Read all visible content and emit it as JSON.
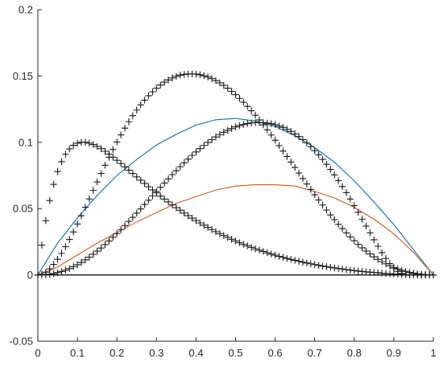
{
  "chart_data": {
    "type": "line",
    "xlim": [
      0,
      1
    ],
    "ylim": [
      -0.05,
      0.2
    ],
    "grid": false,
    "x_ticks": [
      "0",
      "0.1",
      "0.2",
      "0.3",
      "0.4",
      "0.5",
      "0.6",
      "0.7",
      "0.8",
      "0.9",
      "1"
    ],
    "y_ticks": [
      "-0.05",
      "0",
      "0.05",
      "0.1",
      "0.15",
      "0.2"
    ],
    "x_tick_values": [
      0,
      0.1,
      0.2,
      0.3,
      0.4,
      0.5,
      0.6,
      0.7,
      0.8,
      0.9,
      1
    ],
    "y_tick_values": [
      -0.05,
      0,
      0.05,
      0.1,
      0.15,
      0.2
    ],
    "colors": {
      "blue": "#0072BD",
      "orange": "#D95319",
      "marker": "#1a1a1a",
      "axis": "#262626"
    },
    "series": [
      {
        "style": "line",
        "color": "#0072BD",
        "x": [
          0,
          0.05,
          0.1,
          0.15,
          0.2,
          0.25,
          0.3,
          0.35,
          0.4,
          0.45,
          0.5,
          0.55,
          0.6,
          0.65,
          0.7,
          0.75,
          0.8,
          0.85,
          0.9,
          0.95,
          1
        ],
        "y": [
          0,
          0.024,
          0.043,
          0.06,
          0.075,
          0.087,
          0.098,
          0.106,
          0.113,
          0.117,
          0.118,
          0.116,
          0.112,
          0.105,
          0.096,
          0.085,
          0.071,
          0.055,
          0.038,
          0.019,
          0
        ]
      },
      {
        "style": "line",
        "color": "#D95319",
        "x": [
          0,
          0.05,
          0.1,
          0.15,
          0.2,
          0.25,
          0.3,
          0.35,
          0.4,
          0.45,
          0.5,
          0.55,
          0.6,
          0.65,
          0.7,
          0.75,
          0.8,
          0.85,
          0.9,
          0.95,
          1
        ],
        "y": [
          0,
          0.006,
          0.015,
          0.024,
          0.032,
          0.04,
          0.047,
          0.054,
          0.059,
          0.064,
          0.067,
          0.068,
          0.068,
          0.067,
          0.063,
          0.058,
          0.051,
          0.042,
          0.031,
          0.017,
          0
        ]
      },
      {
        "style": "markers",
        "marker": "+",
        "color": "#1a1a1a",
        "x": [
          0,
          0.01,
          0.02,
          0.03,
          0.04,
          0.05,
          0.06,
          0.07,
          0.08,
          0.09,
          0.1,
          0.11,
          0.12,
          0.13,
          0.14,
          0.15,
          0.16,
          0.17,
          0.18,
          0.19,
          0.2,
          0.21,
          0.22,
          0.23,
          0.24,
          0.25,
          0.26,
          0.27,
          0.28,
          0.29,
          0.3,
          0.31,
          0.32,
          0.33,
          0.34,
          0.35,
          0.36,
          0.37,
          0.38,
          0.39,
          0.4,
          0.41,
          0.42,
          0.43,
          0.44,
          0.45,
          0.46,
          0.47,
          0.48,
          0.49,
          0.5,
          0.51,
          0.52,
          0.53,
          0.54,
          0.55,
          0.56,
          0.57,
          0.58,
          0.59,
          0.6,
          0.61,
          0.62,
          0.63,
          0.64,
          0.65,
          0.66,
          0.67,
          0.68,
          0.69,
          0.7,
          0.71,
          0.72,
          0.73,
          0.74,
          0.75,
          0.76,
          0.77,
          0.78,
          0.79,
          0.8,
          0.81,
          0.82,
          0.83,
          0.84,
          0.85,
          0.86,
          0.87,
          0.88,
          0.89,
          0.9,
          0.91,
          0.92,
          0.93,
          0.94,
          0.95,
          0.96,
          0.97,
          0.98,
          0.99,
          1
        ],
        "y": [
          0,
          0.0224,
          0.0409,
          0.0561,
          0.0683,
          0.0779,
          0.0854,
          0.091,
          0.095,
          0.0977,
          0.0993,
          0.1,
          0.1,
          0.0994,
          0.0983,
          0.0969,
          0.0952,
          0.0932,
          0.0911,
          0.0888,
          0.0864,
          0.084,
          0.0815,
          0.079,
          0.0765,
          0.0739,
          0.0714,
          0.069,
          0.0665,
          0.0641,
          0.0618,
          0.0595,
          0.0572,
          0.055,
          0.0528,
          0.0507,
          0.0487,
          0.0467,
          0.0447,
          0.0428,
          0.041,
          0.0392,
          0.0375,
          0.0358,
          0.0342,
          0.0326,
          0.0311,
          0.0297,
          0.0283,
          0.0269,
          0.0256,
          0.0243,
          0.0231,
          0.0219,
          0.0208,
          0.0197,
          0.0187,
          0.0177,
          0.0167,
          0.0158,
          0.0149,
          0.014,
          0.0132,
          0.0124,
          0.0117,
          0.011,
          0.0103,
          0.0096,
          0.009,
          0.0084,
          0.0078,
          0.0072,
          0.0067,
          0.0062,
          0.0057,
          0.0053,
          0.0048,
          0.0044,
          0.004,
          0.0036,
          0.0033,
          0.0029,
          0.0026,
          0.0023,
          0.0021,
          0.0018,
          0.0016,
          0.0013,
          0.0011,
          0.0009,
          0.0007,
          0.0006,
          0.0004,
          0.0003,
          0.0002,
          0.0001,
          0.0001,
          0,
          0,
          0,
          0
        ]
      },
      {
        "style": "markers",
        "marker": "+",
        "color": "#1a1a1a",
        "x": [
          0,
          0.01,
          0.02,
          0.03,
          0.04,
          0.05,
          0.06,
          0.07,
          0.08,
          0.09,
          0.1,
          0.11,
          0.12,
          0.13,
          0.14,
          0.15,
          0.16,
          0.17,
          0.18,
          0.19,
          0.2,
          0.21,
          0.22,
          0.23,
          0.24,
          0.25,
          0.26,
          0.27,
          0.28,
          0.29,
          0.3,
          0.31,
          0.32,
          0.33,
          0.34,
          0.35,
          0.36,
          0.37,
          0.38,
          0.39,
          0.4,
          0.41,
          0.42,
          0.43,
          0.44,
          0.45,
          0.46,
          0.47,
          0.48,
          0.49,
          0.5,
          0.51,
          0.52,
          0.53,
          0.54,
          0.55,
          0.56,
          0.57,
          0.58,
          0.59,
          0.6,
          0.61,
          0.62,
          0.63,
          0.64,
          0.65,
          0.66,
          0.67,
          0.68,
          0.69,
          0.7,
          0.71,
          0.72,
          0.73,
          0.74,
          0.75,
          0.76,
          0.77,
          0.78,
          0.79,
          0.8,
          0.81,
          0.82,
          0.83,
          0.84,
          0.85,
          0.86,
          0.87,
          0.88,
          0.89,
          0.9,
          0.91,
          0.92,
          0.93,
          0.94,
          0.95,
          0.96,
          0.97,
          0.98,
          0.99,
          1
        ],
        "y": [
          0,
          0.0005,
          0.0021,
          0.0046,
          0.0079,
          0.0118,
          0.0163,
          0.0213,
          0.0267,
          0.0324,
          0.0384,
          0.0446,
          0.0509,
          0.0573,
          0.0637,
          0.0701,
          0.0765,
          0.0827,
          0.0887,
          0.0946,
          0.1002,
          0.1056,
          0.1107,
          0.1155,
          0.1201,
          0.1243,
          0.1282,
          0.1318,
          0.1351,
          0.1381,
          0.1408,
          0.1432,
          0.1453,
          0.147,
          0.1485,
          0.1497,
          0.1506,
          0.1512,
          0.1515,
          0.1516,
          0.1514,
          0.1509,
          0.1502,
          0.1492,
          0.148,
          0.1465,
          0.1448,
          0.1429,
          0.1408,
          0.1384,
          0.1359,
          0.1331,
          0.1302,
          0.1271,
          0.1238,
          0.1204,
          0.1168,
          0.1132,
          0.1094,
          0.1055,
          0.1015,
          0.0975,
          0.0934,
          0.0893,
          0.0851,
          0.081,
          0.0768,
          0.0727,
          0.0686,
          0.0645,
          0.0605,
          0.0565,
          0.0527,
          0.0489,
          0.0452,
          0.0417,
          0.0382,
          0.0349,
          0.0317,
          0.0287,
          0.0258,
          0.023,
          0.0204,
          0.018,
          0.0158,
          0.0137,
          0.0117,
          0.01,
          0.0084,
          0.0069,
          0.0056,
          0.0045,
          0.0035,
          0.0026,
          0.0019,
          0.0013,
          0.0008,
          0.0005,
          0.0002,
          0.0001,
          0
        ]
      },
      {
        "style": "markers",
        "marker": "+",
        "color": "#1a1a1a",
        "x": [
          0,
          0.01,
          0.02,
          0.03,
          0.04,
          0.05,
          0.06,
          0.07,
          0.08,
          0.09,
          0.1,
          0.11,
          0.12,
          0.13,
          0.14,
          0.15,
          0.16,
          0.17,
          0.18,
          0.19,
          0.2,
          0.21,
          0.22,
          0.23,
          0.24,
          0.25,
          0.26,
          0.27,
          0.28,
          0.29,
          0.3,
          0.31,
          0.32,
          0.33,
          0.34,
          0.35,
          0.36,
          0.37,
          0.38,
          0.39,
          0.4,
          0.41,
          0.42,
          0.43,
          0.44,
          0.45,
          0.46,
          0.47,
          0.48,
          0.49,
          0.5,
          0.51,
          0.52,
          0.53,
          0.54,
          0.55,
          0.56,
          0.57,
          0.58,
          0.59,
          0.6,
          0.61,
          0.62,
          0.63,
          0.64,
          0.65,
          0.66,
          0.67,
          0.68,
          0.69,
          0.7,
          0.71,
          0.72,
          0.73,
          0.74,
          0.75,
          0.76,
          0.77,
          0.78,
          0.79,
          0.8,
          0.81,
          0.82,
          0.83,
          0.84,
          0.85,
          0.86,
          0.87,
          0.88,
          0.89,
          0.9,
          0.91,
          0.92,
          0.93,
          0.94,
          0.95,
          0.96,
          0.97,
          0.98,
          0.99,
          1
        ],
        "y": [
          0,
          0.0001,
          0.0002,
          0.0005,
          0.001,
          0.0017,
          0.0025,
          0.0036,
          0.0048,
          0.0062,
          0.0077,
          0.0094,
          0.0113,
          0.0134,
          0.0156,
          0.0179,
          0.0203,
          0.0229,
          0.0256,
          0.0284,
          0.0312,
          0.0342,
          0.0372,
          0.0403,
          0.0434,
          0.0466,
          0.0498,
          0.0531,
          0.0563,
          0.0596,
          0.0628,
          0.0661,
          0.0693,
          0.0724,
          0.0756,
          0.0786,
          0.0816,
          0.0845,
          0.0873,
          0.0901,
          0.0927,
          0.0952,
          0.0976,
          0.0999,
          0.102,
          0.104,
          0.1058,
          0.1075,
          0.109,
          0.1104,
          0.1116,
          0.1126,
          0.1134,
          0.1141,
          0.1146,
          0.1148,
          0.1149,
          0.1148,
          0.1145,
          0.114,
          0.1133,
          0.1123,
          0.1112,
          0.1098,
          0.1082,
          0.1063,
          0.1043,
          0.102,
          0.0995,
          0.0967,
          0.0937,
          0.0905,
          0.0871,
          0.0834,
          0.0795,
          0.0754,
          0.0711,
          0.0666,
          0.062,
          0.0572,
          0.0522,
          0.0472,
          0.042,
          0.0368,
          0.0317,
          0.0265,
          0.0216,
          0.0168,
          0.0124,
          0.0085,
          0.0052,
          0.0027,
          0.0011,
          0.0003,
          0,
          0,
          0,
          0,
          0,
          0,
          0
        ]
      }
    ]
  }
}
